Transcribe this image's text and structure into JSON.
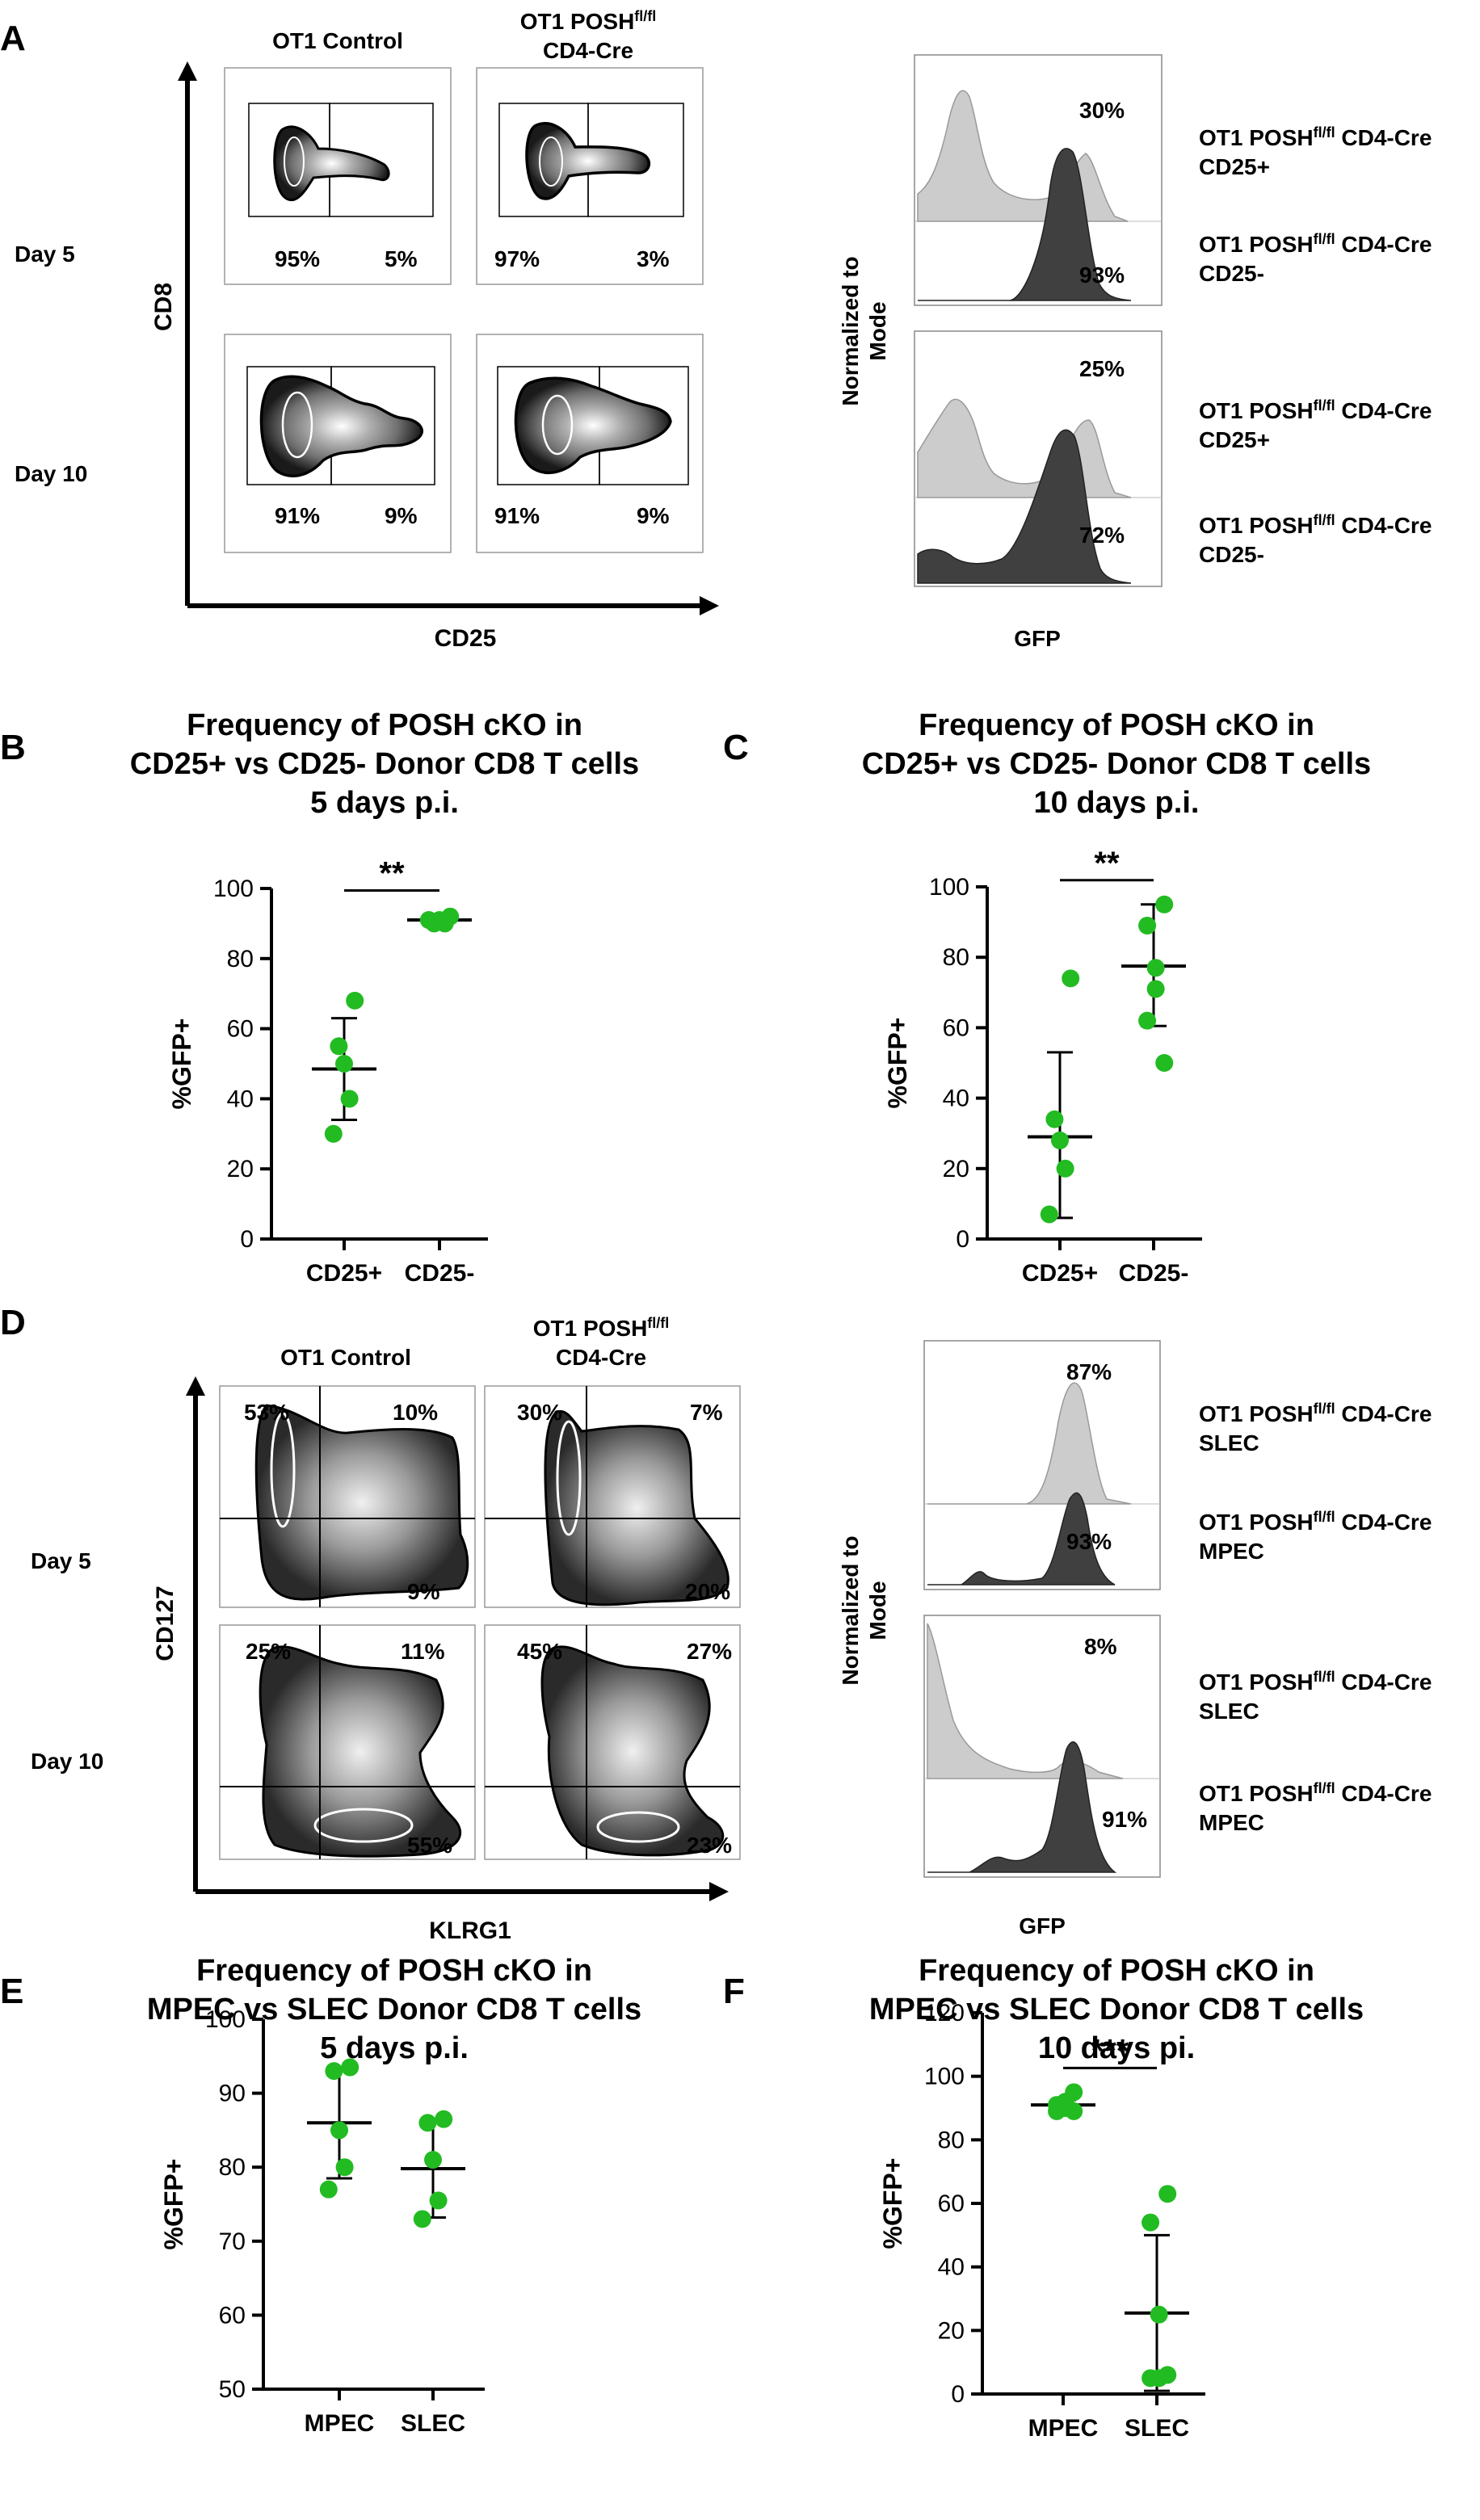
{
  "panels": {
    "A": "A",
    "B": "B",
    "C": "C",
    "D": "D",
    "E": "E",
    "F": "F"
  },
  "colors": {
    "dot": "#22bb22",
    "axis": "#000000",
    "hist_light": "#c8c8c8",
    "hist_dark": "#404040"
  },
  "A": {
    "col1": "OT1 Control",
    "col2_line1": "OT1 POSH",
    "col2_sup": "fl/fl",
    "col2_line2": "CD4-Cre",
    "row1": "Day 5",
    "row2": "Day 10",
    "ylabel": "CD8",
    "xlabel": "CD25",
    "pct": {
      "d5c_l": "95%",
      "d5c_r": "5%",
      "d5k_l": "97%",
      "d5k_r": "3%",
      "d10c_l": "91%",
      "d10c_r": "9%",
      "d10k_l": "91%",
      "d10k_r": "9%"
    },
    "hist": {
      "ylabel_l1": "Normalized to",
      "ylabel_l2": "Mode",
      "xlabel": "GFP",
      "top_light": "30%",
      "top_dark": "93%",
      "bot_light": "25%",
      "bot_dark": "72%",
      "leg_prefix": "OT1 POSH",
      "leg_sup": "fl/fl",
      "leg_suffix": " CD4-Cre",
      "leg1": "CD25+",
      "leg2": "CD25-",
      "leg3": "CD25+",
      "leg4": "CD25-"
    }
  },
  "D": {
    "col1": "OT1 Control",
    "col2_line1": "OT1 POSH",
    "col2_sup": "fl/fl",
    "col2_line2": "CD4-Cre",
    "row1": "Day 5",
    "row2": "Day 10",
    "ylabel": "CD127",
    "xlabel": "KLRG1",
    "pct": {
      "d5c_ul": "53%",
      "d5c_ur": "10%",
      "d5c_lr": "9%",
      "d5k_ul": "30%",
      "d5k_ur": "7%",
      "d5k_lr": "20%",
      "d10c_ul": "25%",
      "d10c_ur": "11%",
      "d10c_lr": "55%",
      "d10k_ul": "45%",
      "d10k_ur": "27%",
      "d10k_lr": "23%"
    },
    "hist": {
      "ylabel_l1": "Normalized to",
      "ylabel_l2": "Mode",
      "xlabel": "GFP",
      "top_light": "87%",
      "top_dark": "93%",
      "bot_light": "8%",
      "bot_dark": "91%",
      "leg_prefix": "OT1 POSH",
      "leg_sup": "fl/fl",
      "leg_suffix": " CD4-Cre",
      "leg1": "SLEC",
      "leg2": "MPEC",
      "leg3": "SLEC",
      "leg4": "MPEC"
    }
  },
  "chart_data": [
    {
      "id": "B",
      "type": "scatter",
      "title": [
        "Frequency of POSH cKO in",
        "CD25+ vs CD25- Donor CD8 T cells",
        "5 days p.i."
      ],
      "ylabel": "%GFP+",
      "ylim": [
        0,
        100
      ],
      "yticks": [
        0,
        20,
        40,
        60,
        80,
        100
      ],
      "categories": [
        "CD25+",
        "CD25-"
      ],
      "series": [
        {
          "name": "CD25+",
          "values": [
            68,
            55,
            50,
            40,
            30
          ],
          "mean": 48.5,
          "sd_low": 34,
          "sd_high": 63
        },
        {
          "name": "CD25-",
          "values": [
            92,
            90,
            91,
            90,
            91
          ],
          "mean": 91,
          "sd_low": 89.5,
          "sd_high": 92.5
        }
      ],
      "significance": "**"
    },
    {
      "id": "C",
      "type": "scatter",
      "title": [
        "Frequency of POSH cKO in",
        "CD25+ vs CD25- Donor CD8 T cells",
        "10 days p.i."
      ],
      "ylabel": "%GFP+",
      "ylim": [
        0,
        100
      ],
      "yticks": [
        0,
        20,
        40,
        60,
        80,
        100
      ],
      "categories": [
        "CD25+",
        "CD25-"
      ],
      "series": [
        {
          "name": "CD25+",
          "values": [
            74,
            34,
            28,
            20,
            7
          ],
          "mean": 29,
          "sd_low": 6,
          "sd_high": 53
        },
        {
          "name": "CD25-",
          "values": [
            95,
            89,
            77,
            71,
            62,
            50
          ],
          "mean": 77.5,
          "sd_low": 60.5,
          "sd_high": 95
        }
      ],
      "significance": "**"
    },
    {
      "id": "E",
      "type": "scatter",
      "title": [
        "Frequency of POSH cKO in",
        "MPEC vs SLEC Donor CD8 T cells",
        "5 days p.i."
      ],
      "ylabel": "%GFP+",
      "ylim": [
        50,
        100
      ],
      "yticks": [
        50,
        60,
        70,
        80,
        90,
        100
      ],
      "categories": [
        "MPEC",
        "SLEC"
      ],
      "series": [
        {
          "name": "MPEC",
          "values": [
            93.5,
            93,
            85,
            80,
            77
          ],
          "mean": 86,
          "sd_low": 78.5,
          "sd_high": 93.2
        },
        {
          "name": "SLEC",
          "values": [
            86.5,
            86,
            81,
            75.5,
            73
          ],
          "mean": 79.8,
          "sd_low": 73.2,
          "sd_high": 86.2
        }
      ],
      "significance": ""
    },
    {
      "id": "F",
      "type": "scatter",
      "title": [
        "Frequency of POSH cKO in",
        "MPEC vs SLEC Donor CD8 T cells",
        "10 days pi."
      ],
      "ylabel": "%GFP+",
      "ylim": [
        0,
        120
      ],
      "yticks": [
        0,
        20,
        40,
        60,
        80,
        100,
        120
      ],
      "categories": [
        "MPEC",
        "SLEC"
      ],
      "series": [
        {
          "name": "MPEC",
          "values": [
            95,
            91,
            92,
            90,
            89,
            89
          ],
          "mean": 91,
          "sd_low": 89.5,
          "sd_high": 92.5
        },
        {
          "name": "SLEC",
          "values": [
            63,
            54,
            25,
            5,
            5,
            6
          ],
          "mean": 25.5,
          "sd_low": 1,
          "sd_high": 50
        },
        {
          "name": "spacer",
          "values": []
        }
      ],
      "significance": "***"
    }
  ]
}
